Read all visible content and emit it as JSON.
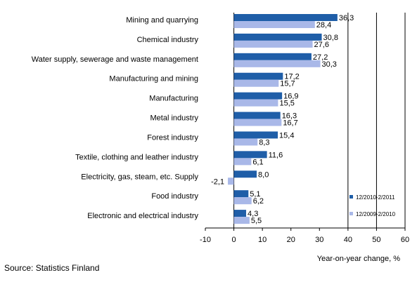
{
  "source": "Source: Statistics Finland",
  "chart_data": {
    "type": "bar",
    "orientation": "horizontal",
    "title": "",
    "xlabel": "Year-on-year change, %",
    "ylabel": "",
    "xlim": [
      -10,
      60
    ],
    "x_ticks": [
      -10,
      0,
      10,
      20,
      30,
      40,
      50,
      60
    ],
    "grid": "vertical lines at 0, 40, 50, 60",
    "legend_position": "bottom-right",
    "categories": [
      "Mining and quarrying",
      "Chemical industry",
      "Water supply, sewerage and waste management",
      "Manufacturing and mining",
      "Manufacturing",
      "Metal industry",
      "Forest industry",
      "Textile, clothing and leather industry",
      "Electricity, gas, steam, etc. Supply",
      "Food industry",
      "Electronic and electrical industry"
    ],
    "series": [
      {
        "name": "12/2010-2/2011",
        "color": "#1f5ea8",
        "values": [
          36.3,
          30.8,
          27.2,
          17.2,
          16.9,
          16.3,
          15.4,
          11.6,
          8.0,
          5.1,
          4.3
        ],
        "labels": [
          "36,3",
          "30,8",
          "27,2",
          "17,2",
          "16,9",
          "16,3",
          "15,4",
          "11,6",
          "8,0",
          "5,1",
          "4,3"
        ]
      },
      {
        "name": "12/2009-2/2010",
        "color": "#a9b8e8",
        "values": [
          28.4,
          27.6,
          30.3,
          15.7,
          15.5,
          16.7,
          8.3,
          6.1,
          -2.1,
          6.2,
          5.5
        ],
        "labels": [
          "28,4",
          "27,6",
          "30,3",
          "15,7",
          "15,5",
          "16,7",
          "8,3",
          "6,1",
          "-2,1",
          "6,2",
          "5,5"
        ]
      }
    ]
  }
}
